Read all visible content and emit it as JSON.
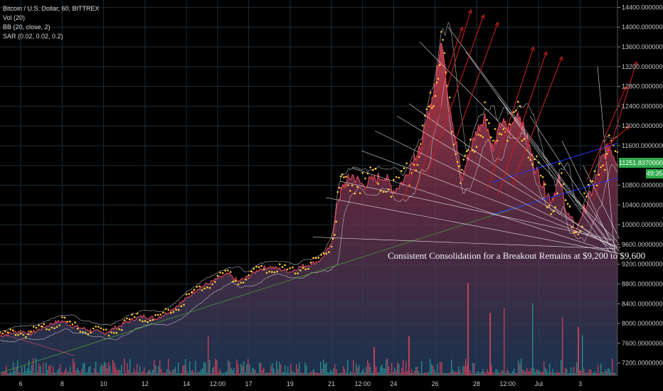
{
  "legend": {
    "symbol": "Bitcoin / U.S. Dollar, 60, BITTREX",
    "vol": "Vol (20)",
    "bb": "BB (20, close, 2)",
    "sar": "SAR (0.02, 0.02, 0.2)"
  },
  "annotation": "Consistent Consolidation for a Breakout Remains at $9,200 to $9,600",
  "last_price": "11251.83700000",
  "countdown": "49:35",
  "colors": {
    "background": "#000000",
    "grid": "#1e2a33",
    "price_line": "#e0465a",
    "area_top": "#b23a48",
    "area_bottom": "#1e3a5a",
    "bollinger": "#d9d9d9",
    "sar": "#ffcc33",
    "fan_lines": "#ffffff",
    "up_arrows": "#c21f1f",
    "channel": "#2233ff",
    "trendline": "#4a9a3a",
    "volume_up": "#2a8a8a",
    "volume_down": "#c0405a",
    "price_tag": "#2ea84a"
  },
  "chart_data": {
    "type": "line",
    "title": "Bitcoin / U.S. Dollar, 60, BITTREX",
    "x_ticks": [
      "6",
      "8",
      "10",
      "12",
      "14",
      "12:00",
      "17",
      "19",
      "21",
      "12:00",
      "24",
      "26",
      "28",
      "12:00",
      "Jul",
      "3"
    ],
    "y_ticks": [
      "7200.00000000",
      "7600.00000000",
      "8000.00000000",
      "8400.00000000",
      "8800.00000000",
      "9200.00000000",
      "9600.00000000",
      "10000.00000000",
      "10400.00000000",
      "10800.00000000",
      "11200.00000000",
      "11600.00000000",
      "12000.00000000",
      "12400.00000000",
      "12800.00000000",
      "13200.00000000",
      "13600.00000000",
      "14000.00000000",
      "14400.00000000"
    ],
    "ylim": [
      6950,
      14550
    ],
    "x_range_days": [
      5.0,
      34.8
    ],
    "grid": true,
    "series": [
      {
        "points": [
          [
            5.0,
            7750
          ],
          [
            5.5,
            7800
          ],
          [
            6.0,
            7850
          ],
          [
            6.5,
            7800
          ],
          [
            7.0,
            7900
          ],
          [
            7.5,
            8000
          ],
          [
            8.0,
            8050
          ],
          [
            8.5,
            7950
          ],
          [
            9.0,
            7900
          ],
          [
            9.5,
            7850
          ],
          [
            10.0,
            7800
          ],
          [
            10.5,
            7900
          ],
          [
            11.0,
            8000
          ],
          [
            11.5,
            8100
          ],
          [
            12.0,
            8150
          ],
          [
            12.5,
            8100
          ],
          [
            13.0,
            8200
          ],
          [
            13.5,
            8350
          ],
          [
            14.0,
            8500
          ],
          [
            14.5,
            8700
          ],
          [
            15.0,
            8800
          ],
          [
            15.5,
            8900
          ],
          [
            16.0,
            9000
          ],
          [
            16.5,
            8850
          ],
          [
            17.0,
            8950
          ],
          [
            17.5,
            9100
          ],
          [
            18.0,
            9150
          ],
          [
            18.5,
            9100
          ],
          [
            19.0,
            9050
          ],
          [
            19.5,
            9150
          ],
          [
            20.0,
            9200
          ],
          [
            20.5,
            9300
          ],
          [
            21.0,
            9600
          ],
          [
            21.3,
            10500
          ],
          [
            21.6,
            10800
          ],
          [
            22.0,
            11000
          ],
          [
            22.5,
            10800
          ],
          [
            23.0,
            10900
          ],
          [
            23.5,
            11000
          ],
          [
            24.0,
            10700
          ],
          [
            24.5,
            10900
          ],
          [
            25.0,
            11400
          ],
          [
            25.3,
            11500
          ],
          [
            25.7,
            12300
          ],
          [
            26.0,
            12800
          ],
          [
            26.3,
            13800
          ],
          [
            26.6,
            12700
          ],
          [
            27.0,
            11700
          ],
          [
            27.3,
            10900
          ],
          [
            27.6,
            11400
          ],
          [
            28.0,
            11900
          ],
          [
            28.4,
            12200
          ],
          [
            28.8,
            11500
          ],
          [
            29.2,
            12100
          ],
          [
            29.6,
            11900
          ],
          [
            30.0,
            12300
          ],
          [
            30.4,
            11800
          ],
          [
            30.8,
            11200
          ],
          [
            31.2,
            10800
          ],
          [
            31.6,
            10500
          ],
          [
            32.0,
            10900
          ],
          [
            32.4,
            10200
          ],
          [
            32.8,
            9900
          ],
          [
            33.2,
            10300
          ],
          [
            33.6,
            10700
          ],
          [
            34.0,
            11300
          ],
          [
            34.4,
            11600
          ],
          [
            34.8,
            11250
          ]
        ]
      }
    ]
  }
}
